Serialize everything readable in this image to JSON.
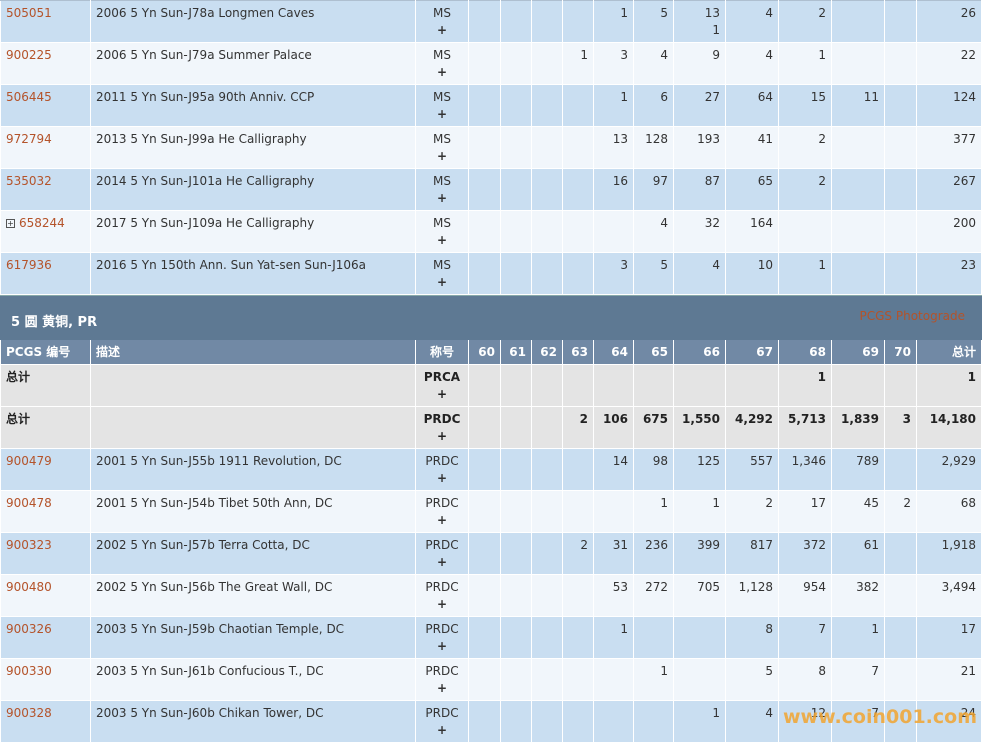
{
  "top_rows": [
    {
      "id": "505051",
      "desc": "2006 5 Yn Sun-J78a Longmen Caves",
      "grade": "MS",
      "counts": [
        null,
        null,
        null,
        null,
        "1",
        "5",
        "13\n1",
        "4",
        "2",
        null,
        null
      ],
      "total": "26"
    },
    {
      "id": "900225",
      "desc": "2006 5 Yn Sun-J79a Summer Palace",
      "grade": "MS",
      "counts": [
        null,
        null,
        null,
        "1",
        "3",
        "4",
        "9",
        "4",
        "1",
        null,
        null
      ],
      "total": "22"
    },
    {
      "id": "506445",
      "desc": "2011 5 Yn Sun-J95a 90th Anniv. CCP",
      "grade": "MS",
      "counts": [
        null,
        null,
        null,
        null,
        "1",
        "6",
        "27",
        "64",
        "15",
        "11",
        null
      ],
      "total": "124"
    },
    {
      "id": "972794",
      "desc": "2013 5 Yn Sun-J99a He Calligraphy",
      "grade": "MS",
      "counts": [
        null,
        null,
        null,
        null,
        "13",
        "128",
        "193",
        "41",
        "2",
        null,
        null
      ],
      "total": "377"
    },
    {
      "id": "535032",
      "desc": "2014 5 Yn Sun-J101a He Calligraphy",
      "grade": "MS",
      "counts": [
        null,
        null,
        null,
        null,
        "16",
        "97",
        "87",
        "65",
        "2",
        null,
        null
      ],
      "total": "267"
    },
    {
      "id": "658244",
      "desc": "2017 5 Yn Sun-J109a He Calligraphy",
      "grade": "MS",
      "counts": [
        null,
        null,
        null,
        null,
        null,
        "4",
        "32",
        "164",
        null,
        null,
        null
      ],
      "total": "200",
      "expandable": true
    },
    {
      "id": "617936",
      "desc": "2016 5 Yn 150th Ann. Sun Yat-sen Sun-J106a",
      "grade": "MS",
      "counts": [
        null,
        null,
        null,
        null,
        "3",
        "5",
        "4",
        "10",
        "1",
        null,
        null
      ],
      "total": "23"
    }
  ],
  "section": {
    "title": "5 圆 黄铜, PR",
    "link": "PCGS Photograde"
  },
  "columns": [
    "PCGS 编号",
    "描述",
    "称号",
    "60",
    "61",
    "62",
    "63",
    "64",
    "65",
    "66",
    "67",
    "68",
    "69",
    "70",
    "总计"
  ],
  "total_rows": [
    {
      "label": "总计",
      "grade": "PRCA",
      "counts": [
        null,
        null,
        null,
        null,
        null,
        null,
        null,
        null,
        "1",
        null,
        null
      ],
      "total": "1"
    },
    {
      "label": "总计",
      "grade": "PRDC",
      "counts": [
        null,
        null,
        null,
        "2",
        "106",
        "675",
        "1,550",
        "4,292",
        "5,713",
        "1,839",
        "3"
      ],
      "total": "14,180"
    }
  ],
  "rows": [
    {
      "id": "900479",
      "desc": "2001 5 Yn Sun-J55b 1911 Revolution, DC",
      "grade": "PRDC",
      "counts": [
        null,
        null,
        null,
        null,
        "14",
        "98",
        "125",
        "557",
        "1,346",
        "789",
        null
      ],
      "total": "2,929"
    },
    {
      "id": "900478",
      "desc": "2001 5 Yn Sun-J54b Tibet 50th Ann, DC",
      "grade": "PRDC",
      "counts": [
        null,
        null,
        null,
        null,
        null,
        "1",
        "1",
        "2",
        "17",
        "45",
        "2"
      ],
      "total": "68"
    },
    {
      "id": "900323",
      "desc": "2002 5 Yn Sun-J57b Terra Cotta, DC",
      "grade": "PRDC",
      "counts": [
        null,
        null,
        null,
        "2",
        "31",
        "236",
        "399",
        "817",
        "372",
        "61",
        null
      ],
      "total": "1,918"
    },
    {
      "id": "900480",
      "desc": "2002 5 Yn Sun-J56b The Great Wall, DC",
      "grade": "PRDC",
      "counts": [
        null,
        null,
        null,
        null,
        "53",
        "272",
        "705",
        "1,128",
        "954",
        "382",
        null
      ],
      "total": "3,494"
    },
    {
      "id": "900326",
      "desc": "2003 5 Yn Sun-J59b Chaotian Temple, DC",
      "grade": "PRDC",
      "counts": [
        null,
        null,
        null,
        null,
        "1",
        null,
        null,
        "8",
        "7",
        "1",
        null
      ],
      "total": "17"
    },
    {
      "id": "900330",
      "desc": "2003 5 Yn Sun-J61b Confucious T., DC",
      "grade": "PRDC",
      "counts": [
        null,
        null,
        null,
        null,
        null,
        "1",
        null,
        "5",
        "8",
        "7",
        null
      ],
      "total": "21"
    },
    {
      "id": "900328",
      "desc": "2003 5 Yn Sun-J60b Chikan Tower, DC",
      "grade": "PRDC",
      "counts": [
        null,
        null,
        null,
        null,
        null,
        null,
        "1",
        "4",
        "12",
        "7",
        null
      ],
      "total": "24"
    }
  ],
  "expand_label": "+",
  "watermark": "www.coin001.com"
}
